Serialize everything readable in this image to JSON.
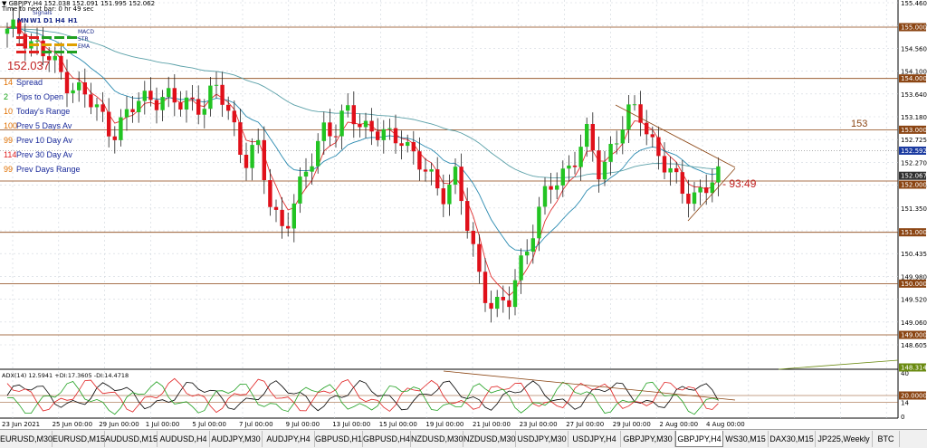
{
  "header": {
    "symbol_line": "▼ GBPJPY,H4 152.038 152.091 151.995 152.062",
    "time_line": "Time to next bar: 0 hr 49 sec",
    "signals_label": "Signals",
    "timeframes": [
      "MN",
      "W1",
      "D1",
      "H4",
      "H1"
    ],
    "signal_rows": [
      "MACD",
      "STR",
      "EMA"
    ]
  },
  "stats": [
    {
      "value": "14",
      "label": "Spread",
      "color": "#e07000"
    },
    {
      "value": "2",
      "label": "Pips to Open",
      "color": "#10a010"
    },
    {
      "value": "10",
      "label": "Today's Range",
      "color": "#e07000"
    },
    {
      "value": "100",
      "label": "Prev 5 Days Av",
      "color": "#e07000"
    },
    {
      "value": "99",
      "label": "Prev 10 Day Av",
      "color": "#e07000"
    },
    {
      "value": "114",
      "label": "Prev 30 Day Av",
      "color": "#e02020"
    },
    {
      "value": "99",
      "label": "Prev Days Range",
      "color": "#e07000"
    }
  ],
  "price_readout": "152.037",
  "level_label": "153",
  "countdown": "93:49",
  "adx_label": "ADX(14) 12.5941 +DI:17.3605 -DI:14.4718",
  "price_axis": [
    "155.460",
    "155.000",
    "154.560",
    "154.100",
    "153.640",
    "153.180",
    "152.725",
    "152.270",
    "151.810",
    "151.350",
    "150.895",
    "150.435",
    "149.980",
    "149.520",
    "149.060",
    "148.605"
  ],
  "level_tags": [
    "155.000",
    "154.000",
    "153.000",
    "152.592",
    "152.067",
    "152.000",
    "151.000",
    "150.000",
    "149.000"
  ],
  "adx_axis": [
    "40",
    "20.0000",
    "14",
    "0"
  ],
  "adx_tag": "148.314",
  "time_axis": [
    "23 Jun 2021",
    "25 Jun 00:00",
    "29 Jun 00:00",
    "1 Jul 00:00",
    "5 Jul 00:00",
    "7 Jul 00:00",
    "9 Jul 00:00",
    "13 Jul 00:00",
    "15 Jul 00:00",
    "19 Jul 00:00",
    "21 Jul 00:00",
    "23 Jul 00:00",
    "27 Jul 00:00",
    "29 Jul 00:00",
    "2 Aug 00:00",
    "4 Aug 00:00"
  ],
  "tabs": [
    "EURUSD,M30",
    "EURUSD,M15",
    "AUDUSD,M15",
    "AUDUSD,H4",
    "AUDJPY,M30",
    "AUDJPY,H4",
    "GBPUSD,H1",
    "GBPUSD,H4",
    "NZDUSD,M30",
    "NZDUSD,M30",
    "USDJPY,M30",
    "USDJPY,H4",
    "GBPJPY,M30",
    "GBPJPY,H4",
    "WS30,M15",
    "DAX30,M15",
    "JP225,Weekly",
    "BTC"
  ],
  "active_tab": "GBPJPY,H4",
  "colors": {
    "bull": "#22c422",
    "bear": "#e0101a",
    "ema_fast": "#e03030",
    "ema_slow": "#2a8ab0",
    "ema_long": "#5aa0a8",
    "level_line": "#8b4513",
    "trend_line": "#8b4513"
  },
  "chart_data": {
    "type": "candlestick",
    "symbol": "GBPJPY",
    "timeframe": "H4",
    "ohlc_close_path": [
      154.85,
      154.95,
      154.7,
      154.4,
      154.1,
      153.9,
      153.6,
      153.3,
      153.0,
      153.2,
      153.55,
      153.7,
      153.6,
      153.45,
      153.6,
      153.5,
      153.75,
      153.3,
      152.4,
      152.6,
      151.6,
      151.1,
      151.6,
      152.4,
      153.1,
      152.9,
      153.4,
      153.15,
      152.9,
      152.8,
      152.95,
      152.4,
      152.05,
      151.8,
      152.15,
      151.0,
      150.0,
      149.6,
      149.5,
      150.4,
      151.2,
      151.75,
      152.05,
      152.5,
      152.85,
      152.1,
      152.8,
      153.25,
      153.3,
      152.8,
      152.3,
      151.8,
      151.75,
      151.9,
      152.0
    ]
  }
}
